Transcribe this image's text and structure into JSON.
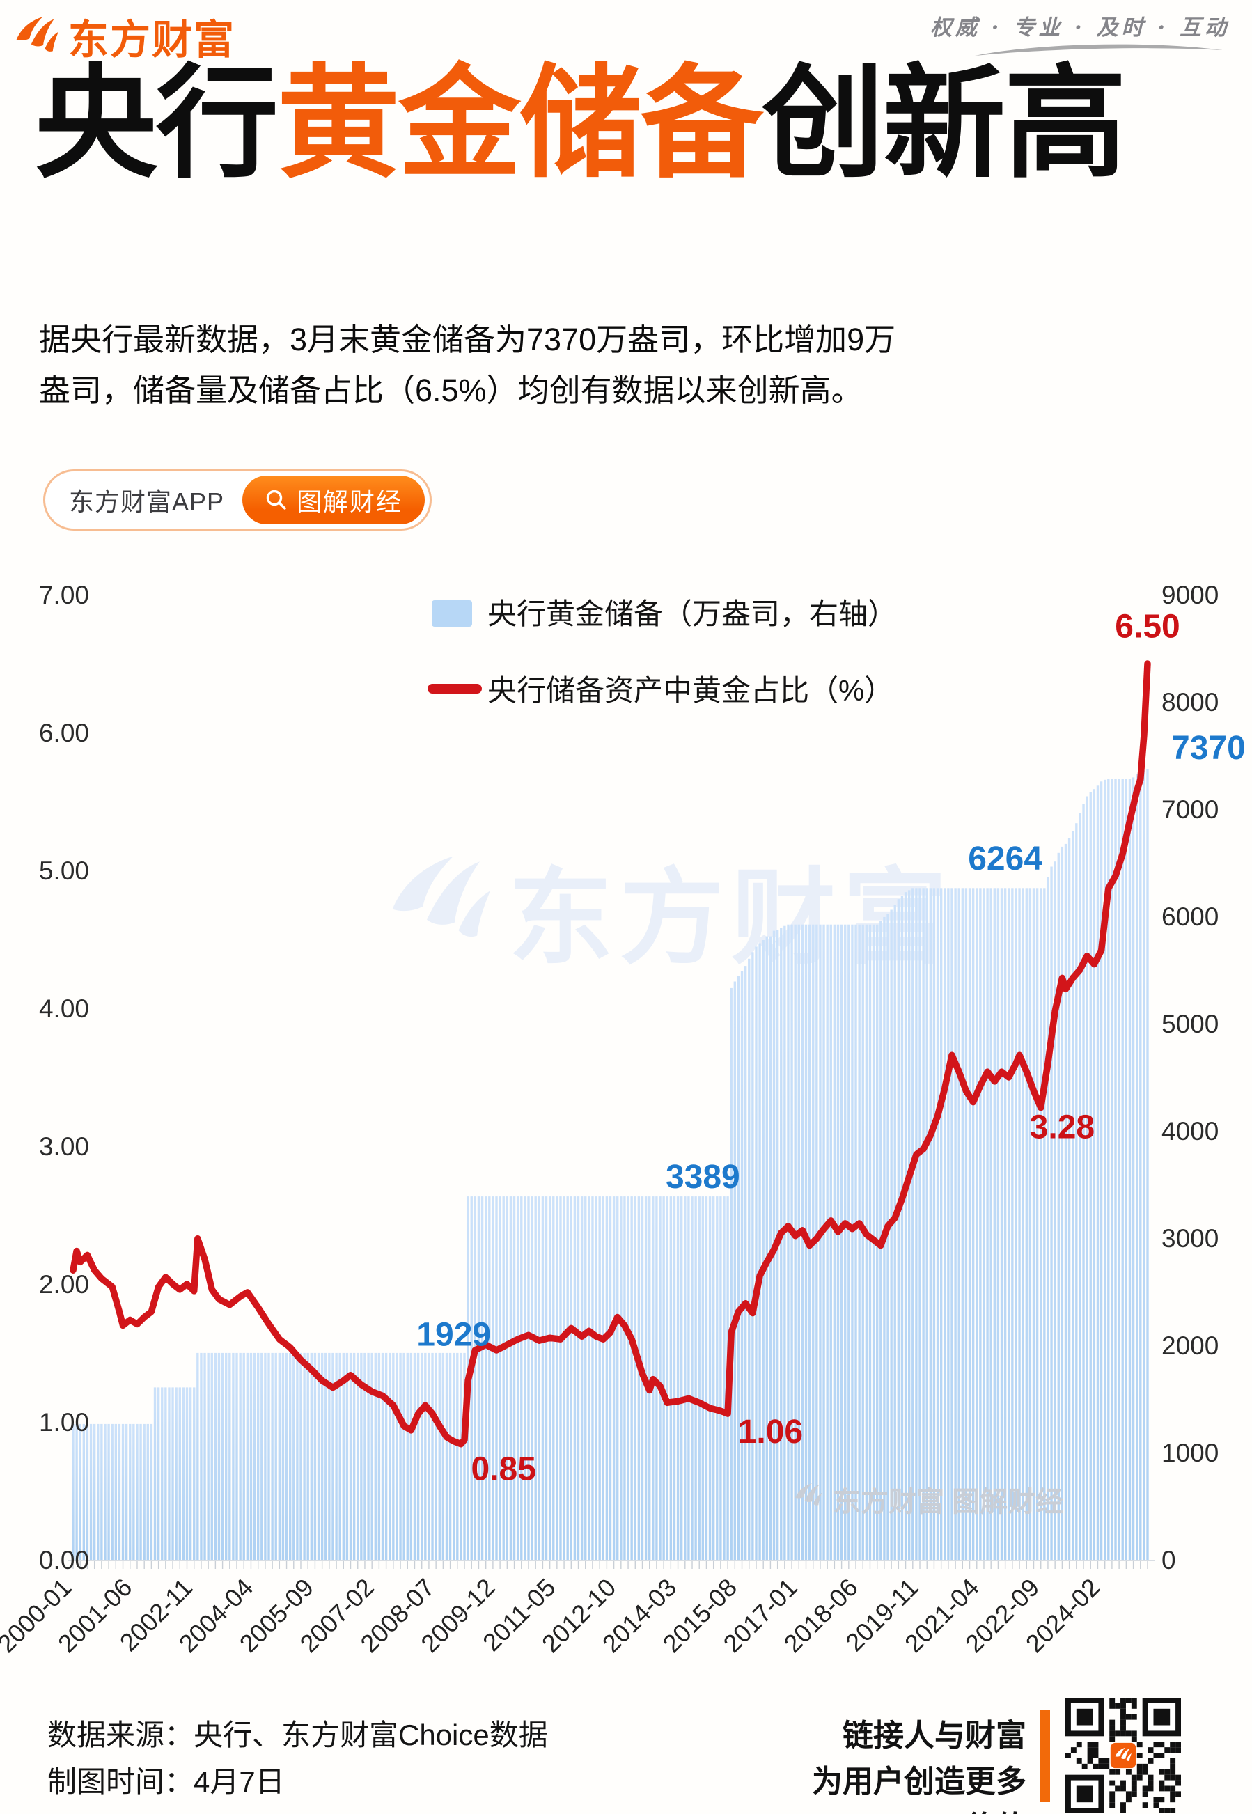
{
  "header": {
    "logo_text": "东方财富",
    "slogan": "权威 · 专业 · 及时 · 互动"
  },
  "title": {
    "part1": "央行",
    "part2": "黄金储备",
    "part3": "创新高"
  },
  "intro": {
    "line1": "据央行最新数据，3月末黄金储备为7370万盎司，环比增加9万",
    "line2": "盎司，储备量及储备占比（6.5%）均创有数据以来创新高。"
  },
  "badges": {
    "app_label": "东方财富APP",
    "tag_label": "图解财经"
  },
  "colors": {
    "accent": "#f25c0a",
    "bar": "#b7d7f6",
    "bar_light": "#d3e6fb",
    "line": "#d2151a",
    "blue_label": "#1d79cc",
    "red_label": "#cc1216",
    "axis_text": "#2b2b2b",
    "watermark_blue": "#e9eff9",
    "watermark_gray": "#c9ced6"
  },
  "chart_data": {
    "type": "combo-bar-line",
    "title": "",
    "legend": [
      {
        "label": "央行黄金储备（万盎司，右轴）",
        "swatch": "bar"
      },
      {
        "label": "央行储备资产中黄金占比（%）",
        "swatch": "line"
      }
    ],
    "left_axis": {
      "label": "央行储备资产中黄金占比（%）",
      "range": [
        0,
        7
      ],
      "ticks": [
        "7.00",
        "6.00",
        "5.00",
        "4.00",
        "3.00",
        "2.00",
        "1.00",
        "0.00"
      ]
    },
    "right_axis": {
      "label": "央行黄金储备（万盎司）",
      "range": [
        0,
        9000
      ],
      "ticks": [
        "9000",
        "8000",
        "7000",
        "6000",
        "5000",
        "4000",
        "3000",
        "2000",
        "1000",
        "0"
      ]
    },
    "x_ticks": [
      "2000-01",
      "2001-06",
      "2002-11",
      "2004-04",
      "2005-09",
      "2007-02",
      "2008-07",
      "2009-12",
      "2011-05",
      "2012-10",
      "2014-03",
      "2015-08",
      "2017-01",
      "2018-06",
      "2019-11",
      "2021-04",
      "2022-09",
      "2024-02"
    ],
    "x_range": [
      "2000-01",
      "2025-03"
    ],
    "grid": false,
    "bars": {
      "name": "央行黄金储备",
      "unit": "万盎司",
      "axis": "right",
      "step_points": [
        [
          "2000-01",
          1267
        ],
        [
          "2001-12",
          1608
        ],
        [
          "2002-12",
          1929
        ],
        [
          "2009-04",
          3389
        ],
        [
          "2015-06",
          5332
        ],
        [
          "2015-07",
          5393
        ],
        [
          "2015-08",
          5445
        ],
        [
          "2015-09",
          5493
        ],
        [
          "2015-10",
          5538
        ],
        [
          "2015-11",
          5605
        ],
        [
          "2015-12",
          5666
        ],
        [
          "2016-01",
          5718
        ],
        [
          "2016-02",
          5750
        ],
        [
          "2016-03",
          5779
        ],
        [
          "2016-04",
          5814
        ],
        [
          "2016-06",
          5866
        ],
        [
          "2016-07",
          5872
        ],
        [
          "2016-08",
          5895
        ],
        [
          "2016-09",
          5911
        ],
        [
          "2016-10",
          5924
        ],
        [
          "2018-12",
          5956
        ],
        [
          "2019-01",
          5994
        ],
        [
          "2019-02",
          6026
        ],
        [
          "2019-03",
          6062
        ],
        [
          "2019-04",
          6110
        ],
        [
          "2019-05",
          6161
        ],
        [
          "2019-06",
          6194
        ],
        [
          "2019-07",
          6226
        ],
        [
          "2019-08",
          6245
        ],
        [
          "2019-09",
          6264
        ],
        [
          "2022-11",
          6367
        ],
        [
          "2022-12",
          6464
        ],
        [
          "2023-01",
          6512
        ],
        [
          "2023-02",
          6592
        ],
        [
          "2023-03",
          6650
        ],
        [
          "2023-04",
          6676
        ],
        [
          "2023-05",
          6727
        ],
        [
          "2023-06",
          6795
        ],
        [
          "2023-07",
          6869
        ],
        [
          "2023-08",
          6962
        ],
        [
          "2023-09",
          7046
        ],
        [
          "2023-10",
          7120
        ],
        [
          "2023-11",
          7158
        ],
        [
          "2023-12",
          7187
        ],
        [
          "2024-01",
          7219
        ],
        [
          "2024-02",
          7258
        ],
        [
          "2024-03",
          7274
        ],
        [
          "2024-04",
          7280
        ],
        [
          "2024-11",
          7296
        ],
        [
          "2024-12",
          7329
        ],
        [
          "2025-01",
          7345
        ],
        [
          "2025-02",
          7361
        ],
        [
          "2025-03",
          7370
        ]
      ]
    },
    "line": {
      "name": "央行储备资产中黄金占比",
      "unit": "%",
      "axis": "left",
      "anchor_points": [
        [
          "2000-01",
          2.1
        ],
        [
          "2000-02",
          2.24
        ],
        [
          "2000-03",
          2.16
        ],
        [
          "2000-05",
          2.21
        ],
        [
          "2000-07",
          2.1
        ],
        [
          "2000-09",
          2.04
        ],
        [
          "2000-12",
          1.98
        ],
        [
          "2001-02",
          1.8
        ],
        [
          "2001-03",
          1.7
        ],
        [
          "2001-05",
          1.74
        ],
        [
          "2001-07",
          1.71
        ],
        [
          "2001-09",
          1.76
        ],
        [
          "2001-11",
          1.8
        ],
        [
          "2002-01",
          1.98
        ],
        [
          "2002-03",
          2.05
        ],
        [
          "2002-05",
          2.0
        ],
        [
          "2002-07",
          1.96
        ],
        [
          "2002-09",
          2.0
        ],
        [
          "2002-11",
          1.95
        ],
        [
          "2002-12",
          2.33
        ],
        [
          "2003-02",
          2.18
        ],
        [
          "2003-04",
          1.96
        ],
        [
          "2003-06",
          1.89
        ],
        [
          "2003-09",
          1.85
        ],
        [
          "2003-12",
          1.91
        ],
        [
          "2004-02",
          1.94
        ],
        [
          "2004-05",
          1.83
        ],
        [
          "2004-08",
          1.71
        ],
        [
          "2004-11",
          1.6
        ],
        [
          "2005-02",
          1.54
        ],
        [
          "2005-05",
          1.45
        ],
        [
          "2005-08",
          1.38
        ],
        [
          "2005-11",
          1.3
        ],
        [
          "2006-02",
          1.25
        ],
        [
          "2006-05",
          1.3
        ],
        [
          "2006-07",
          1.34
        ],
        [
          "2006-10",
          1.27
        ],
        [
          "2007-01",
          1.22
        ],
        [
          "2007-04",
          1.19
        ],
        [
          "2007-07",
          1.12
        ],
        [
          "2007-10",
          0.97
        ],
        [
          "2007-12",
          0.94
        ],
        [
          "2008-02",
          1.06
        ],
        [
          "2008-04",
          1.12
        ],
        [
          "2008-06",
          1.06
        ],
        [
          "2008-08",
          0.97
        ],
        [
          "2008-10",
          0.89
        ],
        [
          "2008-12",
          0.86
        ],
        [
          "2009-02",
          0.84
        ],
        [
          "2009-03",
          0.87
        ],
        [
          "2009-04",
          1.3
        ],
        [
          "2009-06",
          1.52
        ],
        [
          "2009-09",
          1.56
        ],
        [
          "2009-12",
          1.52
        ],
        [
          "2010-03",
          1.56
        ],
        [
          "2010-06",
          1.6
        ],
        [
          "2010-09",
          1.63
        ],
        [
          "2010-12",
          1.59
        ],
        [
          "2011-03",
          1.61
        ],
        [
          "2011-06",
          1.6
        ],
        [
          "2011-09",
          1.68
        ],
        [
          "2011-12",
          1.62
        ],
        [
          "2012-02",
          1.66
        ],
        [
          "2012-04",
          1.62
        ],
        [
          "2012-06",
          1.6
        ],
        [
          "2012-08",
          1.65
        ],
        [
          "2012-10",
          1.76
        ],
        [
          "2012-12",
          1.7
        ],
        [
          "2013-02",
          1.6
        ],
        [
          "2013-05",
          1.35
        ],
        [
          "2013-07",
          1.23
        ],
        [
          "2013-08",
          1.31
        ],
        [
          "2013-10",
          1.26
        ],
        [
          "2013-12",
          1.14
        ],
        [
          "2014-03",
          1.15
        ],
        [
          "2014-06",
          1.17
        ],
        [
          "2014-09",
          1.14
        ],
        [
          "2014-12",
          1.1
        ],
        [
          "2015-03",
          1.08
        ],
        [
          "2015-05",
          1.06
        ],
        [
          "2015-06",
          1.65
        ],
        [
          "2015-08",
          1.8
        ],
        [
          "2015-10",
          1.86
        ],
        [
          "2015-12",
          1.79
        ],
        [
          "2016-02",
          2.06
        ],
        [
          "2016-04",
          2.16
        ],
        [
          "2016-06",
          2.25
        ],
        [
          "2016-08",
          2.37
        ],
        [
          "2016-10",
          2.42
        ],
        [
          "2016-12",
          2.35
        ],
        [
          "2017-02",
          2.39
        ],
        [
          "2017-04",
          2.28
        ],
        [
          "2017-06",
          2.33
        ],
        [
          "2017-08",
          2.4
        ],
        [
          "2017-10",
          2.46
        ],
        [
          "2017-12",
          2.38
        ],
        [
          "2018-02",
          2.44
        ],
        [
          "2018-04",
          2.4
        ],
        [
          "2018-06",
          2.44
        ],
        [
          "2018-08",
          2.36
        ],
        [
          "2018-10",
          2.32
        ],
        [
          "2018-12",
          2.28
        ],
        [
          "2019-02",
          2.42
        ],
        [
          "2019-04",
          2.48
        ],
        [
          "2019-06",
          2.62
        ],
        [
          "2019-08",
          2.78
        ],
        [
          "2019-10",
          2.94
        ],
        [
          "2019-12",
          2.98
        ],
        [
          "2020-02",
          3.08
        ],
        [
          "2020-04",
          3.22
        ],
        [
          "2020-06",
          3.42
        ],
        [
          "2020-08",
          3.66
        ],
        [
          "2020-10",
          3.54
        ],
        [
          "2020-12",
          3.4
        ],
        [
          "2021-02",
          3.32
        ],
        [
          "2021-04",
          3.44
        ],
        [
          "2021-06",
          3.54
        ],
        [
          "2021-08",
          3.47
        ],
        [
          "2021-10",
          3.54
        ],
        [
          "2021-12",
          3.5
        ],
        [
          "2022-02",
          3.6
        ],
        [
          "2022-03",
          3.66
        ],
        [
          "2022-05",
          3.54
        ],
        [
          "2022-07",
          3.4
        ],
        [
          "2022-09",
          3.28
        ],
        [
          "2022-11",
          3.6
        ],
        [
          "2023-01",
          3.98
        ],
        [
          "2023-03",
          4.22
        ],
        [
          "2023-04",
          4.14
        ],
        [
          "2023-06",
          4.22
        ],
        [
          "2023-08",
          4.28
        ],
        [
          "2023-10",
          4.38
        ],
        [
          "2023-12",
          4.32
        ],
        [
          "2024-02",
          4.42
        ],
        [
          "2024-04",
          4.87
        ],
        [
          "2024-06",
          4.96
        ],
        [
          "2024-08",
          5.12
        ],
        [
          "2024-10",
          5.36
        ],
        [
          "2024-12",
          5.58
        ],
        [
          "2025-01",
          5.66
        ],
        [
          "2025-02",
          5.98
        ],
        [
          "2025-03",
          6.5
        ]
      ]
    },
    "annotations": [
      {
        "text": "1929",
        "date": "2008-12",
        "axis": "right",
        "value": 2100,
        "color": "blue",
        "anchor": "middle",
        "dx": 0
      },
      {
        "text": "3389",
        "date": "2014-10",
        "axis": "right",
        "value": 3570,
        "color": "blue",
        "anchor": "middle",
        "dx": 0
      },
      {
        "text": "6264",
        "date": "2021-11",
        "axis": "right",
        "value": 6540,
        "color": "blue",
        "anchor": "middle",
        "dx": 0
      },
      {
        "text": "7370",
        "date": "2025-03",
        "axis": "right",
        "value": 7570,
        "color": "blue",
        "anchor": "start",
        "dx": 34
      },
      {
        "text": "6.50",
        "date": "2025-03",
        "axis": "left",
        "value": 6.77,
        "color": "red",
        "anchor": "middle",
        "dx": 0
      },
      {
        "text": "0.85",
        "date": "2010-02",
        "axis": "left",
        "value": 0.66,
        "color": "red",
        "anchor": "middle",
        "dx": 0
      },
      {
        "text": "1.06",
        "date": "2016-05",
        "axis": "left",
        "value": 0.93,
        "color": "red",
        "anchor": "middle",
        "dx": 0
      },
      {
        "text": "3.28",
        "date": "2023-03",
        "axis": "left",
        "value": 3.14,
        "color": "red",
        "anchor": "middle",
        "dx": 0
      }
    ]
  },
  "watermark": {
    "center": "东方财富",
    "bottom_right": "东方财富 图解财经"
  },
  "footer": {
    "source": "数据来源：央行、东方财富Choice数据",
    "date": "制图时间：4月7日",
    "slogan1": "链接人与财富",
    "slogan2": "为用户创造更多价值"
  }
}
